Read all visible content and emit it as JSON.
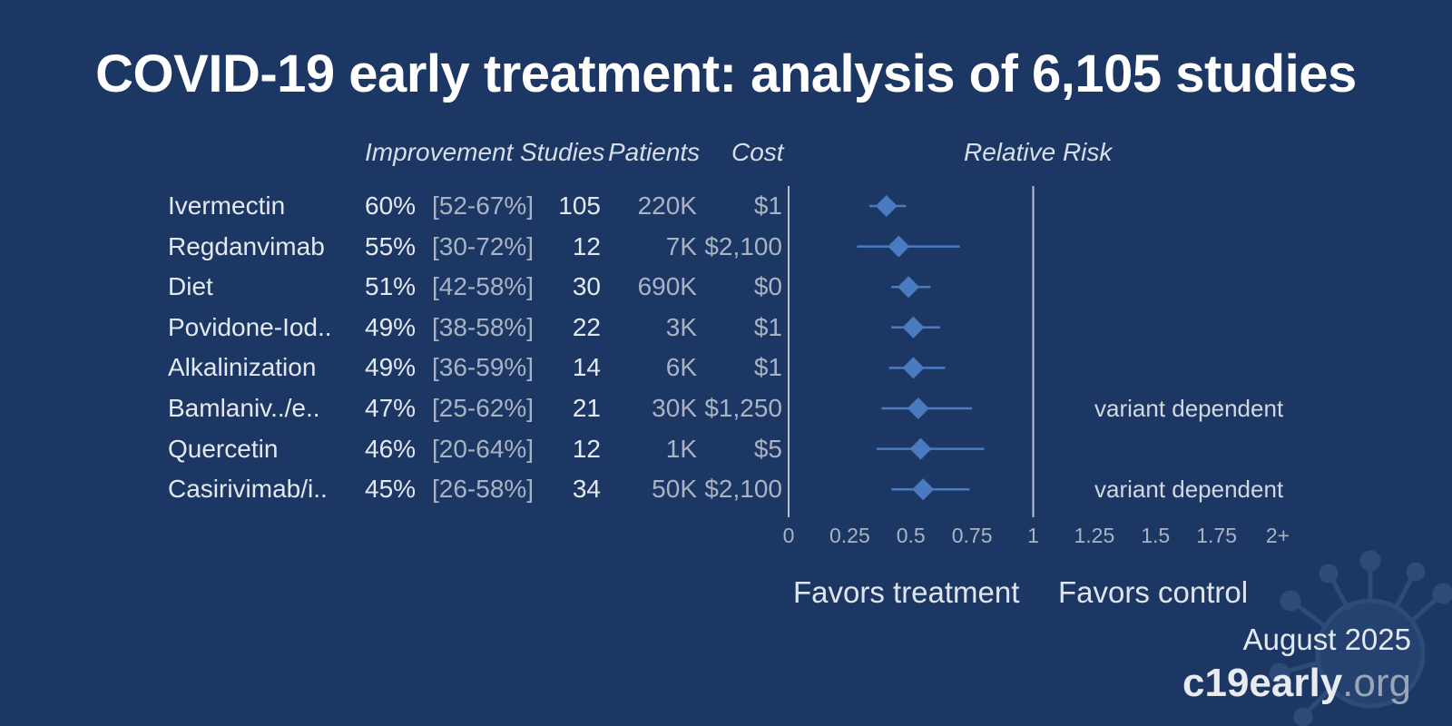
{
  "title": "COVID-19 early treatment: analysis of 6,105 studies",
  "headers": {
    "improvement": "Improvement",
    "studies": "Studies",
    "patients": "Patients",
    "cost": "Cost",
    "relative_risk": "Relative Risk"
  },
  "rows": [
    {
      "name": "Ivermectin",
      "improvement": "60%",
      "ci": "[52-67%]",
      "studies": "105",
      "patients": "220K",
      "cost": "$1",
      "note": ""
    },
    {
      "name": "Regdanvimab",
      "improvement": "55%",
      "ci": "[30-72%]",
      "studies": "12",
      "patients": "7K",
      "cost": "$2,100",
      "note": ""
    },
    {
      "name": "Diet",
      "improvement": "51%",
      "ci": "[42-58%]",
      "studies": "30",
      "patients": "690K",
      "cost": "$0",
      "note": ""
    },
    {
      "name": "Povidone-Iod..",
      "improvement": "49%",
      "ci": "[38-58%]",
      "studies": "22",
      "patients": "3K",
      "cost": "$1",
      "note": ""
    },
    {
      "name": "Alkalinization",
      "improvement": "49%",
      "ci": "[36-59%]",
      "studies": "14",
      "patients": "6K",
      "cost": "$1",
      "note": ""
    },
    {
      "name": "Bamlaniv../e..",
      "improvement": "47%",
      "ci": "[25-62%]",
      "studies": "21",
      "patients": "30K",
      "cost": "$1,250",
      "note": "variant dependent"
    },
    {
      "name": "Quercetin",
      "improvement": "46%",
      "ci": "[20-64%]",
      "studies": "12",
      "patients": "1K",
      "cost": "$5",
      "note": ""
    },
    {
      "name": "Casirivimab/i..",
      "improvement": "45%",
      "ci": "[26-58%]",
      "studies": "34",
      "patients": "50K",
      "cost": "$2,100",
      "note": "variant dependent"
    }
  ],
  "chart_data": {
    "type": "forest",
    "xlabel": "Relative Risk",
    "xlim": [
      0,
      2
    ],
    "ticks": [
      "0",
      "0.25",
      "0.5",
      "0.75",
      "1",
      "1.25",
      "1.5",
      "1.75",
      "2+"
    ],
    "reference_line": 1,
    "points": [
      {
        "label": "Ivermectin",
        "rr": 0.4,
        "lo": 0.33,
        "hi": 0.48
      },
      {
        "label": "Regdanvimab",
        "rr": 0.45,
        "lo": 0.28,
        "hi": 0.7
      },
      {
        "label": "Diet",
        "rr": 0.49,
        "lo": 0.42,
        "hi": 0.58
      },
      {
        "label": "Povidone-Iod..",
        "rr": 0.51,
        "lo": 0.42,
        "hi": 0.62
      },
      {
        "label": "Alkalinization",
        "rr": 0.51,
        "lo": 0.41,
        "hi": 0.64
      },
      {
        "label": "Bamlaniv../e..",
        "rr": 0.53,
        "lo": 0.38,
        "hi": 0.75
      },
      {
        "label": "Quercetin",
        "rr": 0.54,
        "lo": 0.36,
        "hi": 0.8
      },
      {
        "label": "Casirivimab/i..",
        "rr": 0.55,
        "lo": 0.42,
        "hi": 0.74
      }
    ],
    "marker_color": "#4a7bc0"
  },
  "favors_treatment": "Favors treatment",
  "favors_control": "Favors control",
  "date": "August 2025",
  "brand": {
    "main": "c19early",
    "tld": ".org"
  }
}
